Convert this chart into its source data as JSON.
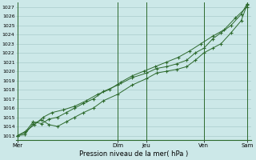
{
  "xlabel": "Pression niveau de la mer( hPa )",
  "bg_color": "#cce8e8",
  "grid_color": "#aacccc",
  "line_color": "#2d6a2d",
  "vline_color": "#2d6a2d",
  "ylim_min": 1012.5,
  "ylim_max": 1027.5,
  "yticks": [
    1013,
    1014,
    1015,
    1016,
    1017,
    1018,
    1019,
    1020,
    1021,
    1022,
    1023,
    1024,
    1025,
    1026,
    1027
  ],
  "day_labels": [
    "Mer",
    "Dim",
    "Jeu",
    "Ven",
    "Sam"
  ],
  "day_positions": [
    0.0,
    3.5,
    4.5,
    6.5,
    8.0
  ],
  "xlim_min": -0.05,
  "xlim_max": 8.15,
  "series1_x": [
    0.0,
    0.25,
    0.55,
    0.85,
    1.1,
    1.4,
    1.7,
    2.0,
    2.3,
    2.65,
    3.0,
    3.5,
    4.0,
    4.5,
    4.85,
    5.2,
    5.55,
    5.9,
    6.2,
    6.5,
    6.8,
    7.1,
    7.45,
    7.8,
    8.0
  ],
  "series1_y": [
    1013.0,
    1013.1,
    1014.3,
    1014.7,
    1014.2,
    1014.0,
    1014.5,
    1015.0,
    1015.5,
    1016.0,
    1016.8,
    1017.5,
    1018.5,
    1019.2,
    1019.8,
    1020.0,
    1020.2,
    1020.5,
    1021.2,
    1022.0,
    1022.5,
    1023.0,
    1024.2,
    1025.5,
    1027.2
  ],
  "series2_x": [
    0.0,
    0.25,
    0.55,
    0.85,
    1.1,
    1.4,
    1.7,
    2.0,
    2.3,
    2.65,
    3.0,
    3.5,
    4.0,
    4.5,
    4.85,
    5.2,
    5.55,
    5.9,
    6.2,
    6.5,
    6.8,
    7.1,
    7.45,
    7.8,
    8.0
  ],
  "series2_y": [
    1013.0,
    1013.3,
    1014.5,
    1014.3,
    1014.8,
    1015.0,
    1015.5,
    1016.0,
    1016.5,
    1017.0,
    1017.8,
    1018.5,
    1019.3,
    1019.8,
    1020.3,
    1020.5,
    1020.8,
    1021.2,
    1022.0,
    1022.5,
    1023.5,
    1024.2,
    1025.0,
    1026.2,
    1027.3
  ],
  "series3_x": [
    0.0,
    0.3,
    0.6,
    0.9,
    1.2,
    1.6,
    2.0,
    2.4,
    2.8,
    3.2,
    3.6,
    4.0,
    4.4,
    4.8,
    5.2,
    5.6,
    6.0,
    6.4,
    6.8,
    7.2,
    7.6,
    8.0
  ],
  "series3_y": [
    1013.0,
    1013.5,
    1014.2,
    1015.0,
    1015.5,
    1015.8,
    1016.2,
    1016.8,
    1017.5,
    1018.0,
    1018.8,
    1019.5,
    1020.0,
    1020.5,
    1021.0,
    1021.5,
    1022.2,
    1023.0,
    1023.8,
    1024.5,
    1025.8,
    1027.0
  ]
}
